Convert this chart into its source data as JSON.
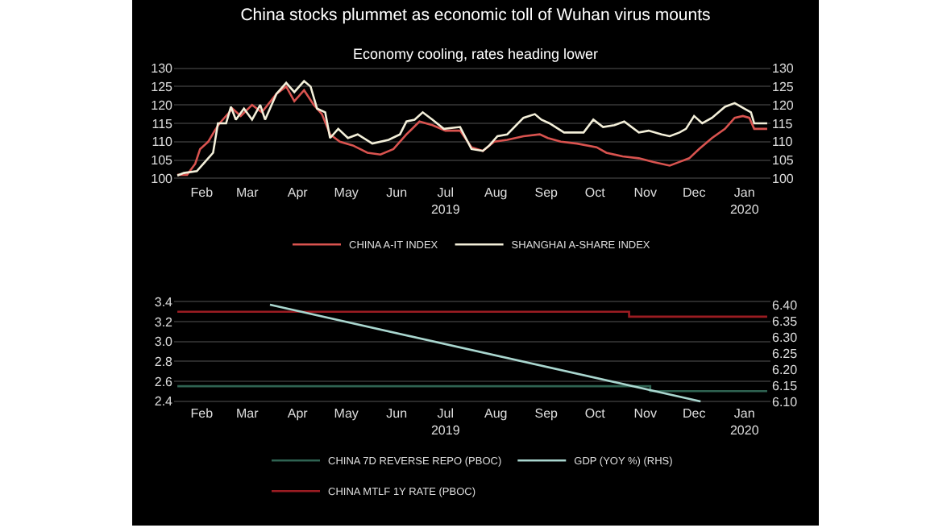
{
  "chart_data": [
    {
      "type": "line",
      "title": "China stocks plummet as economic toll of Wuhan virus mounts",
      "subtitle": "Economy cooling, rates heading lower",
      "xlim": [
        "2019-01-29",
        "2020-01-31"
      ],
      "xticks": [
        {
          "value": "2019-02-15",
          "label": "Feb"
        },
        {
          "value": "2019-03-15",
          "label": "Mar"
        },
        {
          "value": "2019-04-15",
          "label": "Apr"
        },
        {
          "value": "2019-05-15",
          "label": "May"
        },
        {
          "value": "2019-06-15",
          "label": "Jun"
        },
        {
          "value": "2019-07-15",
          "label": "Jul\n2019"
        },
        {
          "value": "2019-08-15",
          "label": "Aug"
        },
        {
          "value": "2019-09-15",
          "label": "Sep"
        },
        {
          "value": "2019-10-15",
          "label": "Oct"
        },
        {
          "value": "2019-11-15",
          "label": "Nov"
        },
        {
          "value": "2019-12-15",
          "label": "Dec"
        },
        {
          "value": "2020-01-15",
          "label": "Jan\n2020"
        }
      ],
      "ylim": [
        99,
        131
      ],
      "yticks": [
        100,
        105,
        110,
        115,
        120,
        125,
        130
      ],
      "y2lim": [
        99,
        131
      ],
      "y2ticks": [
        100,
        105,
        110,
        115,
        120,
        125,
        130
      ],
      "grid": "y",
      "legend": "bottom",
      "line_style": "solid",
      "series": [
        {
          "name": "CHINA A-IT INDEX",
          "color": "#d9534f",
          "x": [
            "2019-01-31",
            "2019-02-06",
            "2019-02-11",
            "2019-02-14",
            "2019-02-19",
            "2019-02-23",
            "2019-02-26",
            "2019-03-06",
            "2019-03-11",
            "2019-03-18",
            "2019-03-24",
            "2019-04-02",
            "2019-04-08",
            "2019-04-13",
            "2019-04-19",
            "2019-04-25",
            "2019-04-30",
            "2019-05-05",
            "2019-05-11",
            "2019-05-19",
            "2019-05-28",
            "2019-06-05",
            "2019-06-13",
            "2019-06-21",
            "2019-06-29",
            "2019-07-07",
            "2019-07-15",
            "2019-07-24",
            "2019-07-31",
            "2019-08-07",
            "2019-08-14",
            "2019-08-22",
            "2019-09-01",
            "2019-09-11",
            "2019-09-16",
            "2019-09-24",
            "2019-10-04",
            "2019-10-16",
            "2019-10-22",
            "2019-11-01",
            "2019-11-11",
            "2019-11-20",
            "2019-11-30",
            "2019-12-06",
            "2019-12-12",
            "2019-12-18",
            "2019-12-26",
            "2020-01-03",
            "2020-01-09",
            "2020-01-14",
            "2020-01-18",
            "2020-01-21",
            "2020-01-29"
          ],
          "values": [
            101,
            101,
            104,
            108,
            110,
            113,
            115,
            119,
            117,
            120,
            118,
            123,
            125,
            121,
            124,
            120,
            117.5,
            112,
            110,
            109,
            107,
            106.5,
            108,
            112,
            115.5,
            114.5,
            113,
            113,
            108.5,
            107.5,
            110,
            110.5,
            111.5,
            112,
            111,
            110,
            109.5,
            108.5,
            107,
            106,
            105.5,
            104.5,
            103.5,
            104.5,
            105.5,
            108,
            111,
            113.5,
            116.5,
            117,
            116.5,
            113.5,
            113.5
          ]
        },
        {
          "name": "SHANGHAI A-SHARE INDEX",
          "color": "#f3efd9",
          "x": [
            "2019-01-31",
            "2019-02-04",
            "2019-02-12",
            "2019-02-18",
            "2019-02-22",
            "2019-02-25",
            "2019-03-02",
            "2019-03-05",
            "2019-03-08",
            "2019-03-13",
            "2019-03-18",
            "2019-03-23",
            "2019-03-26",
            "2019-04-02",
            "2019-04-08",
            "2019-04-13",
            "2019-04-19",
            "2019-04-23",
            "2019-04-27",
            "2019-05-02",
            "2019-05-05",
            "2019-05-10",
            "2019-05-16",
            "2019-05-22",
            "2019-05-31",
            "2019-06-10",
            "2019-06-17",
            "2019-06-21",
            "2019-06-26",
            "2019-07-01",
            "2019-07-07",
            "2019-07-14",
            "2019-07-24",
            "2019-07-31",
            "2019-08-07",
            "2019-08-11",
            "2019-08-16",
            "2019-08-22",
            "2019-09-01",
            "2019-09-08",
            "2019-09-12",
            "2019-09-17",
            "2019-09-26",
            "2019-10-08",
            "2019-10-14",
            "2019-10-20",
            "2019-10-27",
            "2019-11-02",
            "2019-11-11",
            "2019-11-17",
            "2019-11-25",
            "2019-11-30",
            "2019-12-06",
            "2019-12-10",
            "2019-12-15",
            "2019-12-20",
            "2019-12-26",
            "2020-01-03",
            "2020-01-09",
            "2020-01-15",
            "2020-01-19",
            "2020-01-21",
            "2020-01-29"
          ],
          "values": [
            100.8,
            101.5,
            102,
            105,
            107,
            115,
            115,
            119.5,
            116,
            119,
            116,
            120,
            116,
            123,
            126,
            123.5,
            126.5,
            125,
            119,
            118,
            111,
            113.5,
            111,
            112,
            109.5,
            110.5,
            112,
            115.5,
            116,
            118,
            116,
            113.5,
            114,
            108,
            107.5,
            109,
            111.5,
            112,
            116.5,
            117.5,
            116,
            115,
            112.5,
            112.5,
            116,
            114,
            114.5,
            115.5,
            112.5,
            113,
            112,
            111.5,
            112.5,
            113.5,
            117,
            115,
            116.5,
            119.5,
            120.5,
            119,
            118,
            115,
            115
          ]
        }
      ]
    },
    {
      "type": "line",
      "xlim": [
        "2019-01-29",
        "2020-01-31"
      ],
      "xticks": [
        {
          "value": "2019-02-15",
          "label": "Feb"
        },
        {
          "value": "2019-03-15",
          "label": "Mar"
        },
        {
          "value": "2019-04-15",
          "label": "Apr"
        },
        {
          "value": "2019-05-15",
          "label": "May"
        },
        {
          "value": "2019-06-15",
          "label": "Jun"
        },
        {
          "value": "2019-07-15",
          "label": "Jul\n2019"
        },
        {
          "value": "2019-08-15",
          "label": "Aug"
        },
        {
          "value": "2019-09-15",
          "label": "Sep"
        },
        {
          "value": "2019-10-15",
          "label": "Oct"
        },
        {
          "value": "2019-11-15",
          "label": "Nov"
        },
        {
          "value": "2019-12-15",
          "label": "Dec"
        },
        {
          "value": "2020-01-15",
          "label": "Jan\n2020"
        }
      ],
      "ylim": [
        2.38,
        3.42
      ],
      "yticks": [
        {
          "value": 2.4,
          "label": "2.4"
        },
        {
          "value": 2.6,
          "label": "2.6"
        },
        {
          "value": 2.8,
          "label": "2.8"
        },
        {
          "value": 3,
          "label": "3.0"
        },
        {
          "value": 3.2,
          "label": "3.2"
        },
        {
          "value": 3.4,
          "label": "3.4"
        }
      ],
      "y2lim": [
        6.095,
        6.415
      ],
      "y2ticks": [
        {
          "value": 6.1,
          "label": "6.10"
        },
        6.15,
        {
          "value": 6.2,
          "label": "6.20"
        },
        6.25,
        {
          "value": 6.3,
          "label": "6.30"
        },
        6.35,
        {
          "value": 6.4,
          "label": "6.40"
        }
      ],
      "grid": "y",
      "legend": "bottom",
      "line_style": "solid",
      "series": [
        {
          "name": "CHINA 7D REVERSE REPO (PBOC)",
          "color": "#2f6352",
          "type": "step",
          "x": [
            "2019-01-31",
            "2019-11-18",
            "2020-01-29"
          ],
          "values": [
            2.55,
            2.5,
            2.5
          ]
        },
        {
          "name": "GDP (YOY %) (RHS)",
          "color": "#a9d6cf",
          "axis": "y2",
          "x": [
            "2019-03-29",
            "2019-12-19"
          ],
          "values": [
            6.4,
            6.1
          ]
        },
        {
          "name": "CHINA MTLF 1Y RATE (PBOC)",
          "color": "#9b1c22",
          "type": "step",
          "x": [
            "2019-01-31",
            "2019-11-05",
            "2020-01-29"
          ],
          "values": [
            3.3,
            3.25,
            3.25
          ]
        }
      ]
    }
  ]
}
